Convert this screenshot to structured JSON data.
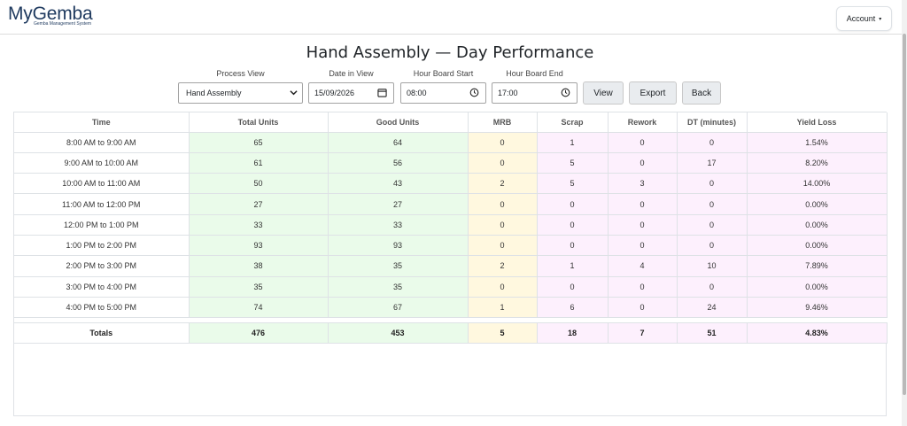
{
  "header": {
    "logo_main": "MyGemba",
    "logo_sub": "Gemba Management System",
    "account_label": "Account",
    "account_caret": "▾"
  },
  "page_title": "Hand Assembly — Day Performance",
  "controls": {
    "process_view_label": "Process View",
    "process_view_value": "Hand Assembly",
    "date_label": "Date in View",
    "date_value": "15/09/2026",
    "start_label": "Hour Board Start",
    "start_value": "08:00",
    "end_label": "Hour Board End",
    "end_value": "17:00",
    "view_button": "View",
    "export_button": "Export",
    "back_button": "Back"
  },
  "table": {
    "columns": [
      "Time",
      "Total Units",
      "Good Units",
      "MRB",
      "Scrap",
      "Rework",
      "DT (minutes)",
      "Yield Loss"
    ],
    "rows": [
      [
        "8:00 AM to 9:00 AM",
        "65",
        "64",
        "0",
        "1",
        "0",
        "0",
        "1.54%"
      ],
      [
        "9:00 AM to 10:00 AM",
        "61",
        "56",
        "0",
        "5",
        "0",
        "17",
        "8.20%"
      ],
      [
        "10:00 AM to 11:00 AM",
        "50",
        "43",
        "2",
        "5",
        "3",
        "0",
        "14.00%"
      ],
      [
        "11:00 AM to 12:00 PM",
        "27",
        "27",
        "0",
        "0",
        "0",
        "0",
        "0.00%"
      ],
      [
        "12:00 PM to 1:00 PM",
        "33",
        "33",
        "0",
        "0",
        "0",
        "0",
        "0.00%"
      ],
      [
        "1:00 PM to 2:00 PM",
        "93",
        "93",
        "0",
        "0",
        "0",
        "0",
        "0.00%"
      ],
      [
        "2:00 PM to 3:00 PM",
        "38",
        "35",
        "2",
        "1",
        "4",
        "10",
        "7.89%"
      ],
      [
        "3:00 PM to 4:00 PM",
        "35",
        "35",
        "0",
        "0",
        "0",
        "0",
        "0.00%"
      ],
      [
        "4:00 PM to 5:00 PM",
        "74",
        "67",
        "1",
        "6",
        "0",
        "24",
        "9.46%"
      ]
    ],
    "totals": [
      "Totals",
      "476",
      "453",
      "5",
      "18",
      "7",
      "51",
      "4.83%"
    ]
  },
  "colors": {
    "good": "#eafbea",
    "mrb": "#fff8df",
    "loss": "#fdf0fd",
    "brand": "#1f3a5f"
  },
  "icons": {
    "calendar": "calendar-icon",
    "clock": "clock-icon",
    "dropdown": "chevron-down-icon"
  }
}
